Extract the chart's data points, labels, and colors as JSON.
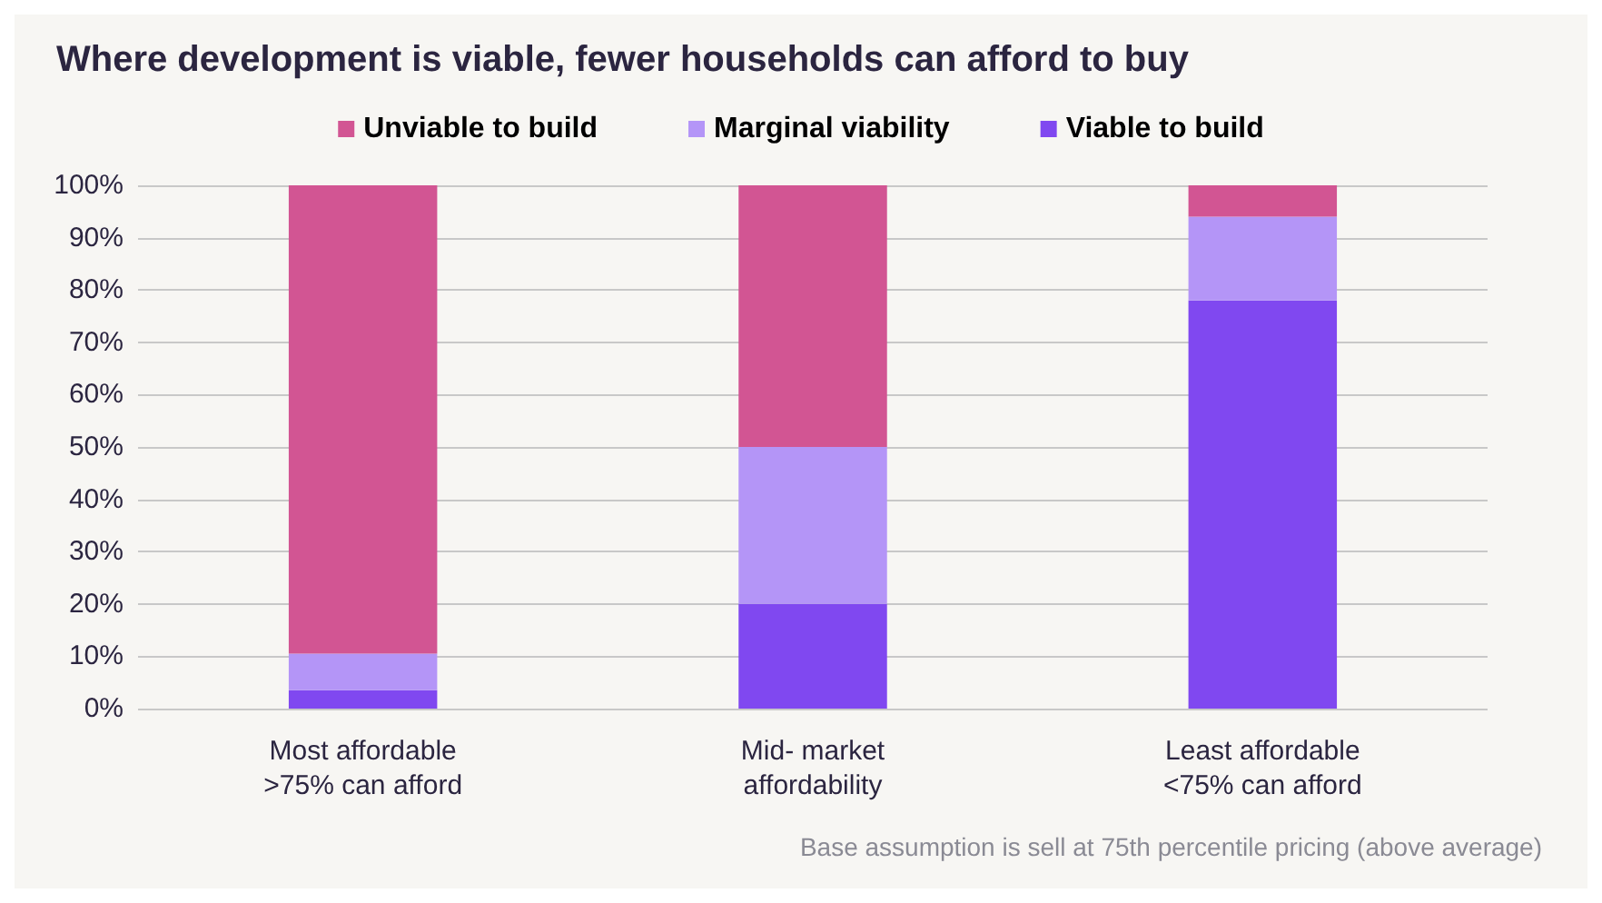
{
  "chart_data": {
    "type": "bar",
    "title": "Where development is viable, fewer households can afford to buy",
    "categories": [
      "Most affordable\n>75% can afford",
      "Mid- market\naffordability",
      "Least affordable\n<75% can afford"
    ],
    "stacked": true,
    "series": [
      {
        "name": "Viable to build",
        "color": "#8048f0",
        "values": [
          3.5,
          20,
          78
        ]
      },
      {
        "name": "Marginal viability",
        "color": "#b495f7",
        "values": [
          7,
          30,
          16
        ]
      },
      {
        "name": "Unviable to build",
        "color": "#d25593",
        "values": [
          89.5,
          50,
          6
        ]
      }
    ],
    "ylim": [
      0,
      100
    ],
    "yticks": [
      {
        "value": 0,
        "label": "0%"
      },
      {
        "value": 10,
        "label": "10%"
      },
      {
        "value": 20,
        "label": "20%"
      },
      {
        "value": 30,
        "label": "30%"
      },
      {
        "value": 40,
        "label": "40%"
      },
      {
        "value": 50,
        "label": "50%"
      },
      {
        "value": 60,
        "label": "60%"
      },
      {
        "value": 70,
        "label": "70%"
      },
      {
        "value": 80,
        "label": "80%"
      },
      {
        "value": 90,
        "label": "90%"
      },
      {
        "value": 100,
        "label": "100%"
      }
    ],
    "grid": "y",
    "legend": "top",
    "annotations": [
      "Base assumption is sell at 75th percentile pricing (above average)"
    ]
  }
}
